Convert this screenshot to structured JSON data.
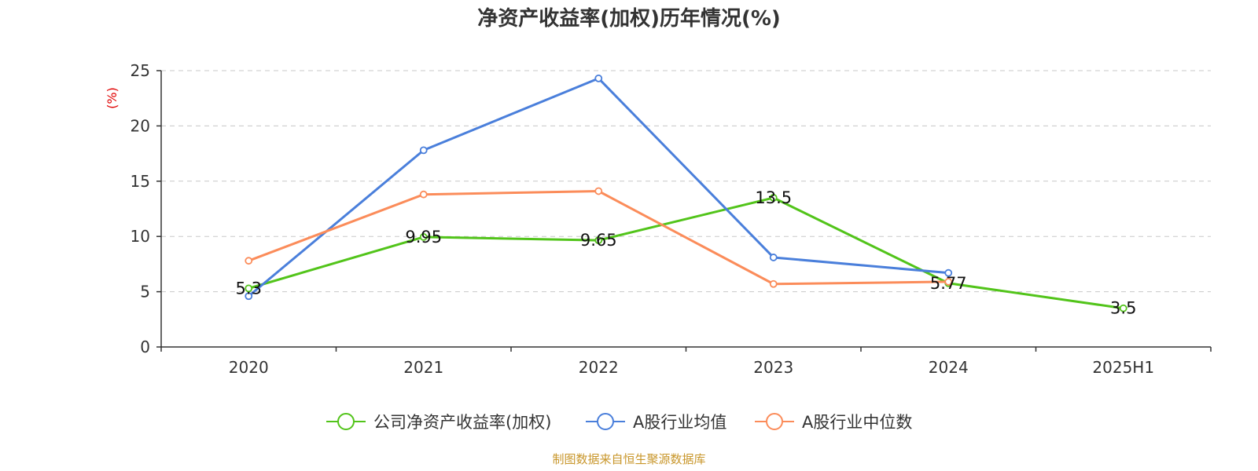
{
  "chart_data": {
    "type": "line",
    "title": "净资产收益率(加权)历年情况(%)",
    "ylabel": "(%)",
    "xlabel": "",
    "categories": [
      "2020",
      "2021",
      "2022",
      "2023",
      "2024",
      "2025H1"
    ],
    "ylim": [
      0,
      25
    ],
    "yticks": [
      0,
      5,
      10,
      15,
      20,
      25
    ],
    "grid": true,
    "legend_position": "bottom-center",
    "series": [
      {
        "name": "公司净资产收益率(加权)",
        "color": "#52c41a",
        "values": [
          5.3,
          9.95,
          9.65,
          13.5,
          5.77,
          3.5
        ],
        "labels": [
          "5.3",
          "9.95",
          "9.65",
          "13.5",
          "5.77",
          "3.5"
        ]
      },
      {
        "name": "A股行业均值",
        "color": "#4a7fdb",
        "values": [
          4.6,
          17.8,
          24.3,
          8.1,
          6.7,
          null
        ]
      },
      {
        "name": "A股行业中位数",
        "color": "#fb8c5a",
        "values": [
          7.8,
          13.8,
          14.1,
          5.7,
          5.9,
          null
        ]
      }
    ],
    "source": "制图数据来自恒生聚源数据库"
  }
}
